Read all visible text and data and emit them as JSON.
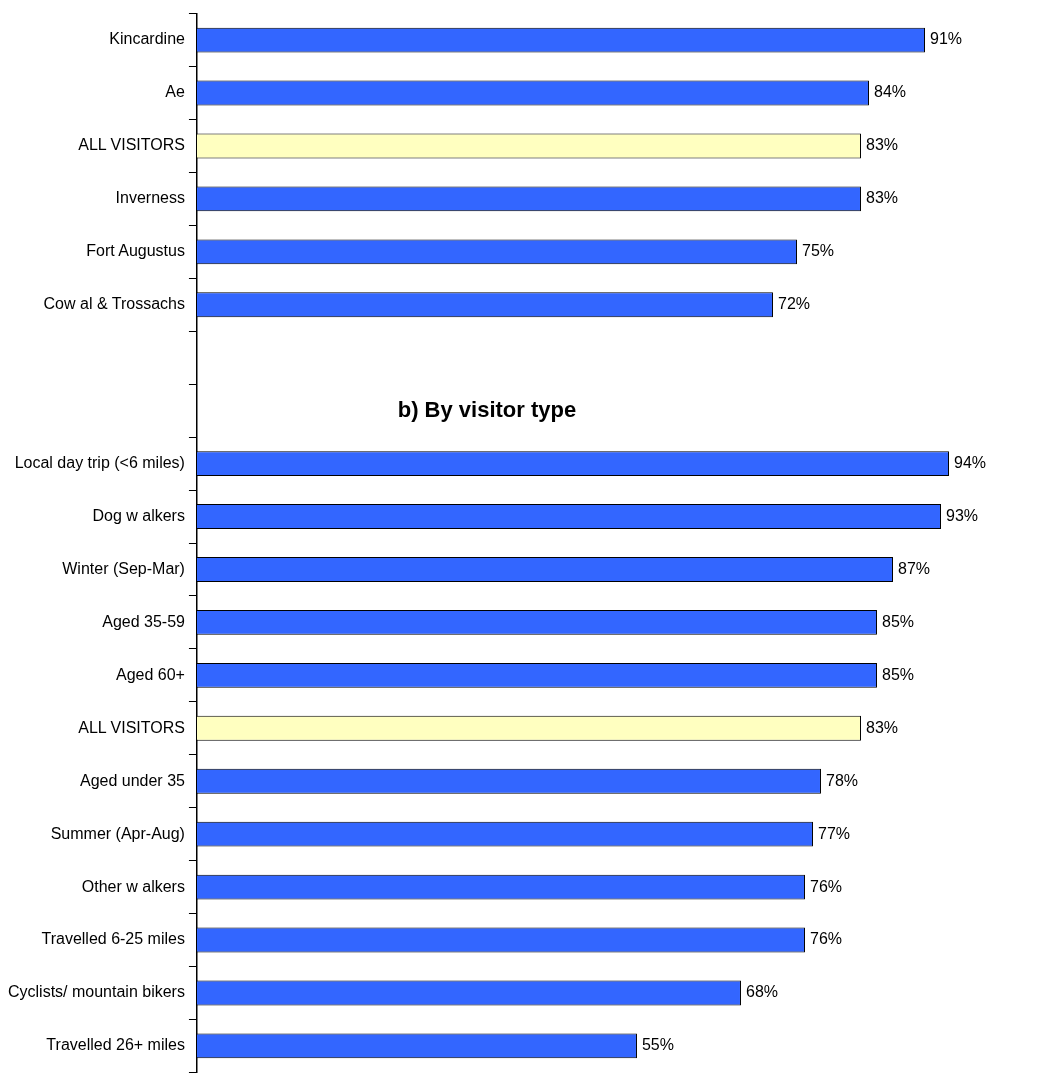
{
  "chart_data": {
    "type": "bar",
    "orientation": "horizontal",
    "categories": [
      "Kincardine",
      "Ae",
      "ALL VISITORS",
      "Inverness",
      "Fort Augustus",
      "Cow al & Trossachs",
      null,
      null,
      "Local day trip (<6 miles)",
      "Dog w alkers",
      "Winter (Sep-Mar)",
      "Aged 35-59",
      "Aged 60+",
      "ALL VISITORS",
      "Aged under 35",
      "Summer (Apr-Aug)",
      "Other w alkers",
      "Travelled 6-25 miles",
      "Cyclists/ mountain bikers",
      "Travelled 26+ miles"
    ],
    "values": [
      91,
      84,
      83,
      83,
      75,
      72,
      null,
      null,
      94,
      93,
      87,
      85,
      85,
      83,
      78,
      77,
      76,
      76,
      68,
      55
    ],
    "value_labels": [
      "91%",
      "84%",
      "83%",
      "83%",
      "75%",
      "72%",
      null,
      null,
      "94%",
      "93%",
      "87%",
      "85%",
      "85%",
      "83%",
      "78%",
      "77%",
      "76%",
      "76%",
      "68%",
      "55%"
    ],
    "colors": [
      "#3366ff",
      "#3366ff",
      "#ffffc0",
      "#3366ff",
      "#3366ff",
      "#3366ff",
      null,
      null,
      "#3366ff",
      "#3366ff",
      "#3366ff",
      "#3366ff",
      "#3366ff",
      "#ffffc0",
      "#3366ff",
      "#3366ff",
      "#3366ff",
      "#3366ff",
      "#3366ff",
      "#3366ff"
    ],
    "tick_labels": "y",
    "grid": false,
    "legend": false,
    "annotations": [
      "b) By visitor type"
    ]
  }
}
